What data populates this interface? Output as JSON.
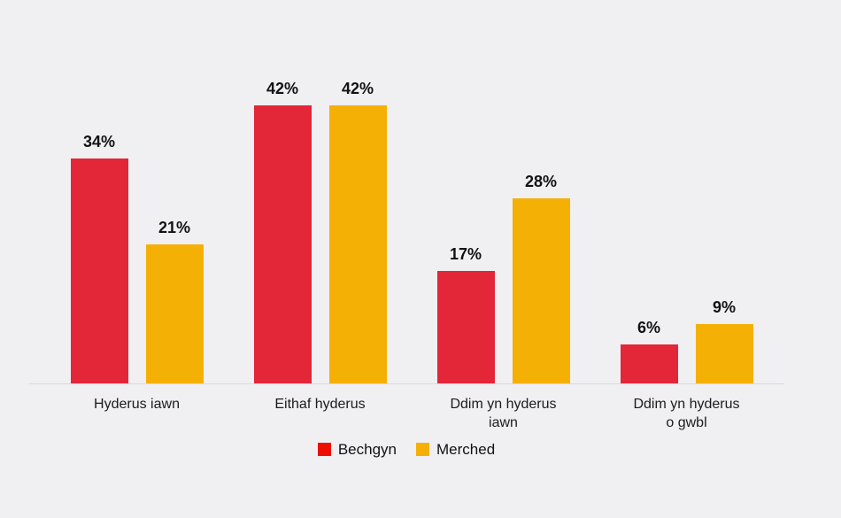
{
  "page": {
    "background_color": "#f0eff2",
    "axis_line_color": "#dadadd",
    "text_color": "#1c1c1c",
    "value_label_color": "#121212"
  },
  "chart_data": {
    "type": "bar",
    "title": "",
    "xlabel": "",
    "ylabel": "",
    "categories": [
      "Hyderus iawn",
      "Eithaf hyderus",
      "Ddim yn hyderus iawn",
      "Ddim yn hyderus o gwbl"
    ],
    "category_label_lines": [
      [
        "Hyderus iawn"
      ],
      [
        "Eithaf hyderus"
      ],
      [
        "Ddim yn hyderus",
        "iawn"
      ],
      [
        "Ddim yn hyderus",
        "o gwbl"
      ]
    ],
    "series": [
      {
        "name": "Bechgyn",
        "color": "#e32638",
        "legend_color": "#ee0e00",
        "values": [
          34,
          42,
          17,
          6
        ],
        "labels": [
          "34%",
          "42%",
          "17%",
          "6%"
        ]
      },
      {
        "name": "Merched",
        "color": "#f5b005",
        "legend_color": "#f5b005",
        "values": [
          21,
          42,
          28,
          9
        ],
        "labels": [
          "21%",
          "42%",
          "28%",
          "9%"
        ]
      }
    ],
    "ylim": [
      0,
      50
    ],
    "grid": false,
    "legend_position": "bottom",
    "value_suffix": "%"
  }
}
